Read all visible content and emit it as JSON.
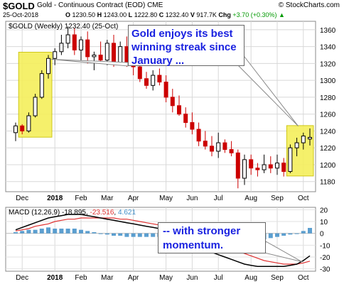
{
  "header": {
    "symbol": "$GOLD",
    "description": "Gold - Continuous Contract (EOD)",
    "exchange": "CME",
    "source": "© StockCharts.com",
    "date": "25-Oct-2018",
    "open_label": "O",
    "open": "1230.50",
    "high_label": "H",
    "high": "1243.00",
    "low_label": "L",
    "low": "1222.80",
    "close_label": "C",
    "close": "1232.40",
    "volume_label": "V",
    "volume": "917.7K",
    "change_label": "Chg",
    "change": "+3.70 (+0.30%)",
    "change_arrow": "▲"
  },
  "callouts": {
    "top": "Gold enjoys its best winning streak since January ...",
    "bottom": "-- with stronger momentum."
  },
  "colors": {
    "up": "#000000",
    "down": "#cc0000",
    "highlight": "#f5ef5c",
    "macd_line": "#000000",
    "signal_line": "#e03030",
    "histogram": "#3e8ec8",
    "callout_text": "#1a22e0"
  },
  "chart_data": [
    {
      "type": "candlestick",
      "legend": "$GOLD (Weekly) 1232.40 (25-Oct)",
      "y_ticks": [
        1180,
        1200,
        1220,
        1240,
        1260,
        1280,
        1300,
        1320,
        1340,
        1360
      ],
      "ylim": [
        1168,
        1370
      ],
      "x_tick_labels": [
        "Dec",
        "2018",
        "Feb",
        "Mar",
        "Apr",
        "May",
        "Jun",
        "Jul",
        "Aug",
        "Sep",
        "Oct"
      ],
      "x_tick_weeks": [
        1,
        6,
        10,
        14,
        18,
        23,
        27,
        31,
        36,
        40,
        44
      ],
      "weeks": [
        [
          1238,
          1250,
          1228,
          1246
        ],
        [
          1246,
          1248,
          1236,
          1240
        ],
        [
          1240,
          1262,
          1238,
          1258
        ],
        [
          1258,
          1284,
          1256,
          1280
        ],
        [
          1280,
          1312,
          1278,
          1308
        ],
        [
          1308,
          1330,
          1302,
          1326
        ],
        [
          1326,
          1338,
          1318,
          1334
        ],
        [
          1334,
          1354,
          1330,
          1344
        ],
        [
          1344,
          1364,
          1338,
          1354
        ],
        [
          1354,
          1362,
          1330,
          1336
        ],
        [
          1336,
          1352,
          1322,
          1348
        ],
        [
          1348,
          1358,
          1320,
          1328
        ],
        [
          1328,
          1334,
          1312,
          1330
        ],
        [
          1330,
          1346,
          1322,
          1324
        ],
        [
          1324,
          1348,
          1318,
          1344
        ],
        [
          1344,
          1354,
          1316,
          1320
        ],
        [
          1320,
          1346,
          1318,
          1340
        ],
        [
          1340,
          1352,
          1316,
          1320
        ],
        [
          1320,
          1328,
          1306,
          1316
        ],
        [
          1316,
          1320,
          1298,
          1302
        ],
        [
          1302,
          1310,
          1290,
          1294
        ],
        [
          1294,
          1312,
          1288,
          1306
        ],
        [
          1306,
          1314,
          1294,
          1298
        ],
        [
          1298,
          1306,
          1274,
          1280
        ],
        [
          1280,
          1290,
          1262,
          1270
        ],
        [
          1270,
          1282,
          1258,
          1260
        ],
        [
          1260,
          1268,
          1244,
          1250
        ],
        [
          1250,
          1262,
          1236,
          1242
        ],
        [
          1242,
          1250,
          1222,
          1228
        ],
        [
          1228,
          1240,
          1218,
          1222
        ],
        [
          1222,
          1234,
          1210,
          1216
        ],
        [
          1216,
          1238,
          1208,
          1226
        ],
        [
          1226,
          1230,
          1214,
          1218
        ],
        [
          1218,
          1228,
          1210,
          1214
        ],
        [
          1214,
          1218,
          1172,
          1184
        ],
        [
          1184,
          1212,
          1176,
          1206
        ],
        [
          1206,
          1212,
          1188,
          1196
        ],
        [
          1196,
          1202,
          1186,
          1194
        ],
        [
          1194,
          1212,
          1190,
          1200
        ],
        [
          1200,
          1210,
          1190,
          1196
        ],
        [
          1196,
          1212,
          1188,
          1202
        ],
        [
          1202,
          1208,
          1186,
          1192
        ],
        [
          1192,
          1224,
          1190,
          1220
        ],
        [
          1220,
          1232,
          1210,
          1226
        ],
        [
          1226,
          1238,
          1218,
          1234
        ],
        [
          1230.5,
          1243,
          1222.8,
          1232.4
        ]
      ],
      "highlight_weeks": [
        [
          1,
          5
        ],
        [
          42,
          45
        ]
      ]
    },
    {
      "type": "line",
      "legend": "MACD (12,26,9) -18.895, -23.516, 4.621",
      "legend_parts": {
        "name": "MACD",
        "params": "(12,26,9)",
        "macd": "-18.895",
        "signal": "-23.516",
        "hist": "4.621"
      },
      "y_ticks": [
        -30,
        -20,
        -10,
        0,
        10,
        20
      ],
      "ylim": [
        -32,
        22
      ],
      "x_tick_labels": [
        "Dec",
        "2018",
        "Feb",
        "Mar",
        "Apr",
        "May",
        "Jun",
        "Jul",
        "Aug",
        "Sep",
        "Oct"
      ],
      "x_tick_weeks": [
        1,
        6,
        10,
        14,
        18,
        23,
        27,
        31,
        36,
        40,
        44
      ],
      "macd": [
        3,
        5,
        7,
        9,
        11,
        13,
        14,
        15,
        16,
        16,
        16,
        15,
        14,
        13,
        12,
        11,
        10,
        9,
        8,
        7,
        6,
        5,
        4,
        2,
        0,
        -2,
        -5,
        -8,
        -11,
        -13,
        -16,
        -18,
        -20,
        -22,
        -24,
        -26,
        -27,
        -28,
        -28,
        -28,
        -28,
        -28,
        -27,
        -26,
        -23,
        -19
      ],
      "signal": [
        2,
        3,
        4,
        6,
        7,
        8,
        10,
        11,
        12,
        12,
        13,
        13,
        13,
        13,
        13,
        13,
        12,
        12,
        11,
        10,
        9,
        8,
        7,
        6,
        5,
        4,
        2,
        0,
        -3,
        -5,
        -7,
        -9,
        -11,
        -13,
        -15,
        -17,
        -19,
        -21,
        -23,
        -24,
        -25,
        -26,
        -26,
        -26,
        -25,
        -23.5
      ],
      "hist": [
        1,
        2,
        3,
        3,
        4,
        5,
        4,
        4,
        4,
        4,
        3,
        2,
        1,
        0,
        -1,
        -2,
        -2,
        -3,
        -3,
        -3,
        -3,
        -3,
        -3,
        -4,
        -5,
        -6,
        -7,
        -8,
        -8,
        -8,
        -9,
        -9,
        -9,
        -9,
        -9,
        -9,
        -8,
        -7,
        -5,
        -4,
        -3,
        -2,
        -1,
        0,
        2,
        4.6
      ]
    }
  ]
}
